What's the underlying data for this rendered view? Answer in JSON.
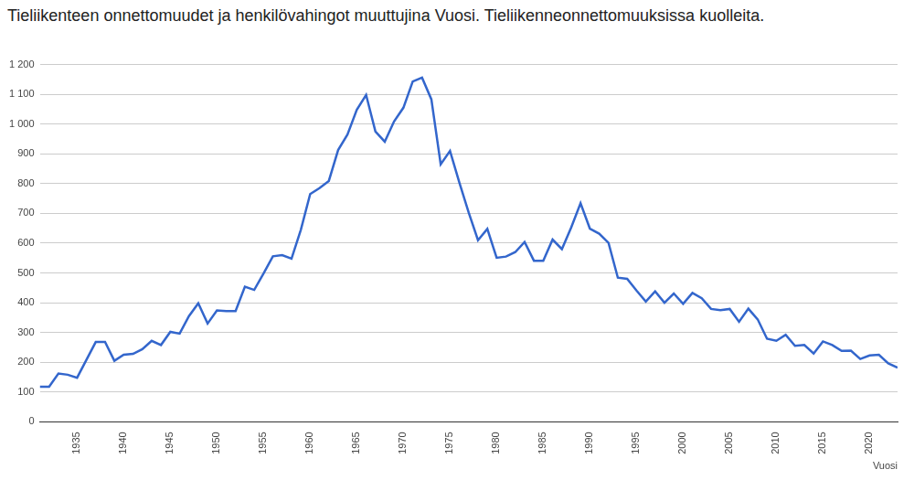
{
  "chart_data": {
    "type": "line",
    "title": "Tieliikenteen onnettomuudet ja henkilövahingot muuttujina Vuosi. Tieliikenneonnettomuuksissa kuolleita.",
    "x_label": "Vuosi",
    "x": [
      1931,
      1932,
      1933,
      1934,
      1935,
      1936,
      1937,
      1938,
      1939,
      1940,
      1941,
      1942,
      1943,
      1944,
      1945,
      1946,
      1947,
      1948,
      1949,
      1950,
      1951,
      1952,
      1953,
      1954,
      1955,
      1956,
      1957,
      1958,
      1959,
      1960,
      1961,
      1962,
      1963,
      1964,
      1965,
      1966,
      1967,
      1968,
      1969,
      1970,
      1971,
      1972,
      1973,
      1974,
      1975,
      1976,
      1977,
      1978,
      1979,
      1980,
      1981,
      1982,
      1983,
      1984,
      1985,
      1986,
      1987,
      1988,
      1989,
      1990,
      1991,
      1992,
      1993,
      1994,
      1995,
      1996,
      1997,
      1998,
      1999,
      2000,
      2001,
      2002,
      2003,
      2004,
      2005,
      2006,
      2007,
      2008,
      2009,
      2010,
      2011,
      2012,
      2013,
      2014,
      2015,
      2016,
      2017,
      2018,
      2019,
      2020,
      2021,
      2022,
      2023
    ],
    "values": [
      118,
      118,
      162,
      158,
      148,
      208,
      268,
      268,
      205,
      225,
      228,
      244,
      272,
      258,
      302,
      296,
      355,
      398,
      330,
      374,
      372,
      372,
      454,
      443,
      498,
      556,
      560,
      548,
      645,
      765,
      785,
      809,
      913,
      965,
      1048,
      1098,
      975,
      941,
      1009,
      1055,
      1143,
      1156,
      1083,
      865,
      910,
      804,
      703,
      610,
      648,
      551,
      555,
      570,
      604,
      541,
      541,
      612,
      580,
      653,
      734,
      649,
      632,
      601,
      484,
      480,
      441,
      404,
      438,
      400,
      431,
      396,
      433,
      415,
      379,
      375,
      379,
      336,
      380,
      344,
      279,
      272,
      292,
      255,
      258,
      229,
      270,
      258,
      238,
      239,
      211,
      223,
      225,
      196,
      182
    ],
    "color": "#3366cc",
    "xlim": [
      1931,
      2023
    ],
    "xticks": [
      1935,
      1940,
      1945,
      1950,
      1955,
      1960,
      1965,
      1970,
      1975,
      1980,
      1985,
      1990,
      1995,
      2000,
      2005,
      2010,
      2015,
      2020
    ],
    "ylim": [
      0,
      1200
    ],
    "yticks": [
      0,
      100,
      200,
      300,
      400,
      500,
      600,
      700,
      800,
      900,
      {
        "value": 1000,
        "label": "1 000"
      },
      {
        "value": 1100,
        "label": "1 100"
      },
      {
        "value": 1200,
        "label": "1 200"
      }
    ],
    "grid": true
  }
}
